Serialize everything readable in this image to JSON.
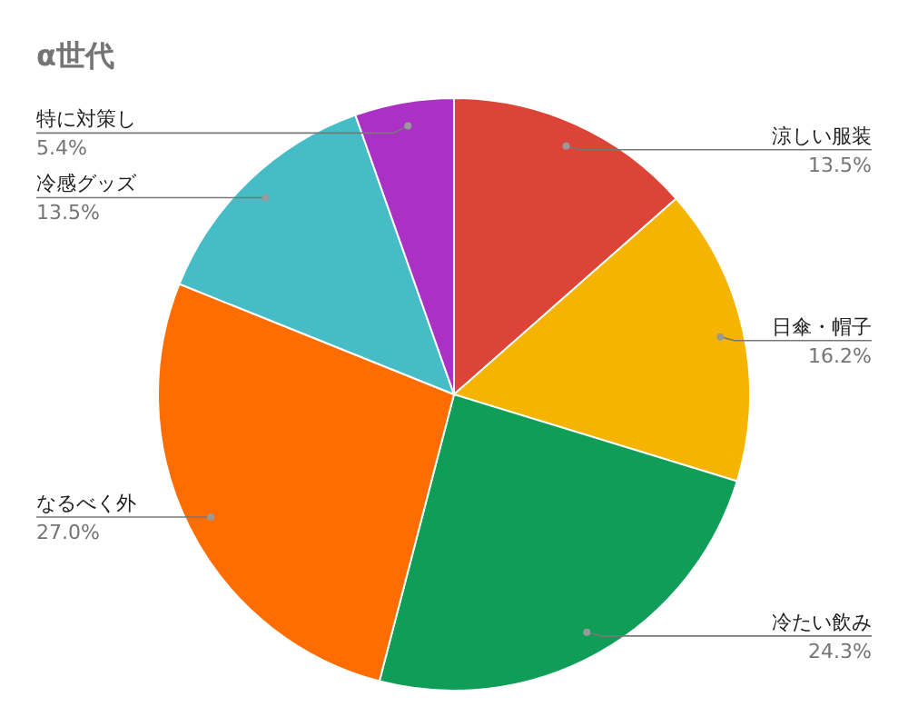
{
  "chart_data": {
    "type": "pie",
    "title": "α世代",
    "categories": [
      "涼しい服装",
      "日傘・帽子",
      "冷たい飲み",
      "なるべく外",
      "冷感グッズ",
      "特に対策し"
    ],
    "values": [
      13.5,
      16.2,
      24.3,
      27.0,
      13.5,
      5.4
    ],
    "value_labels": [
      "13.5%",
      "16.2%",
      "24.3%",
      "27.0%",
      "13.5%",
      "5.4%"
    ],
    "colors": [
      "#db4437",
      "#f4b400",
      "#0f9d58",
      "#ff6d01",
      "#46bdc6",
      "#ab30c4"
    ]
  }
}
